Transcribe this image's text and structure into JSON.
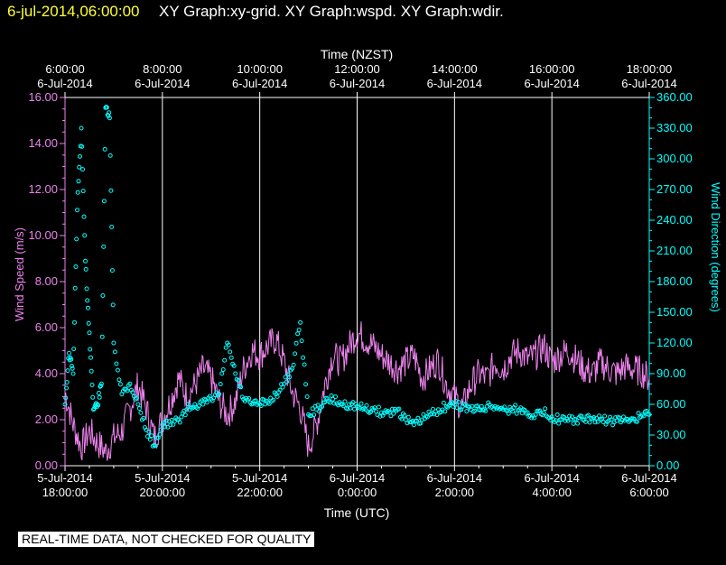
{
  "header": {
    "timestamp": "6-jul-2014,06:00:00",
    "title": "XY Graph:xy-grid.  XY Graph:wspd.  XY Graph:wdir."
  },
  "footer": {
    "qc_note": "REAL-TIME DATA, NOT CHECKED FOR QUALITY"
  },
  "colors": {
    "background": "#000000",
    "axes": "#ffffff",
    "grid": "#ffffff",
    "wind_speed": "#ee82ee",
    "wind_direction": "#00ffff",
    "timestamp": "#ffff33"
  },
  "chart_data": {
    "type": "line",
    "grid": true,
    "x_top": {
      "label": "Time (NZST)",
      "ticks": [
        {
          "time": "6:00:00",
          "date": "6-Jul-2014"
        },
        {
          "time": "8:00:00",
          "date": "6-Jul-2014"
        },
        {
          "time": "10:00:00",
          "date": "6-Jul-2014"
        },
        {
          "time": "12:00:00",
          "date": "6-Jul-2014"
        },
        {
          "time": "14:00:00",
          "date": "6-Jul-2014"
        },
        {
          "time": "16:00:00",
          "date": "6-Jul-2014"
        },
        {
          "time": "18:00:00",
          "date": "6-Jul-2014"
        }
      ]
    },
    "x_bottom": {
      "label": "Time (UTC)",
      "range": [
        "2014-07-05 18:00:00",
        "2014-07-06 06:00:00"
      ],
      "ticks": [
        {
          "date": "5-Jul-2014",
          "time": "18:00:00"
        },
        {
          "date": "5-Jul-2014",
          "time": "20:00:00"
        },
        {
          "date": "5-Jul-2014",
          "time": "22:00:00"
        },
        {
          "date": "6-Jul-2014",
          "time": "0:00:00"
        },
        {
          "date": "6-Jul-2014",
          "time": "2:00:00"
        },
        {
          "date": "6-Jul-2014",
          "time": "4:00:00"
        },
        {
          "date": "6-Jul-2014",
          "time": "6:00:00"
        }
      ]
    },
    "y_left": {
      "label": "Wind Speed (m/s)",
      "range": [
        0,
        16
      ],
      "ticks": [
        "0.00",
        "2.00",
        "4.00",
        "6.00",
        "8.00",
        "10.00",
        "12.00",
        "14.00",
        "16.00"
      ]
    },
    "y_right": {
      "label": "Wind Direction (degrees)",
      "range": [
        0,
        360
      ],
      "ticks": [
        "0.00",
        "30.00",
        "60.00",
        "90.00",
        "120.00",
        "150.00",
        "180.00",
        "210.00",
        "240.00",
        "270.00",
        "300.00",
        "330.00",
        "360.00"
      ]
    },
    "series": [
      {
        "name": "wspd",
        "style": "line",
        "axis": "left",
        "x": [
          "18:00",
          "18:10",
          "18:20",
          "18:30",
          "18:40",
          "18:50",
          "19:00",
          "19:10",
          "19:20",
          "19:30",
          "19:40",
          "19:50",
          "20:00",
          "20:10",
          "20:20",
          "20:30",
          "20:40",
          "20:50",
          "21:00",
          "21:10",
          "21:20",
          "21:30",
          "21:40",
          "21:50",
          "22:00",
          "22:10",
          "22:20",
          "22:30",
          "22:40",
          "22:50",
          "23:00",
          "23:10",
          "23:20",
          "23:30",
          "23:40",
          "23:50",
          "00:00",
          "00:10",
          "00:20",
          "00:30",
          "00:40",
          "00:50",
          "01:00",
          "01:10",
          "01:20",
          "01:30",
          "01:40",
          "01:50",
          "02:00",
          "02:10",
          "02:20",
          "02:30",
          "02:40",
          "02:50",
          "03:00",
          "03:10",
          "03:20",
          "03:30",
          "03:40",
          "03:50",
          "04:00",
          "04:10",
          "04:20",
          "04:30",
          "04:40",
          "04:50",
          "05:00",
          "05:10",
          "05:20",
          "05:30",
          "05:40",
          "05:50",
          "06:00"
        ],
        "y": [
          3.2,
          1.8,
          0.8,
          1.5,
          1.0,
          0.6,
          1.2,
          1.5,
          2.5,
          3.5,
          2.5,
          1.2,
          2.0,
          2.8,
          3.8,
          3.0,
          3.5,
          4.2,
          3.8,
          2.8,
          2.2,
          2.8,
          4.2,
          5.0,
          4.8,
          5.2,
          5.5,
          4.5,
          3.2,
          2.5,
          0.8,
          1.8,
          3.5,
          4.8,
          4.5,
          5.2,
          5.8,
          5.5,
          5.2,
          4.8,
          4.5,
          4.2,
          4.5,
          4.8,
          3.8,
          4.2,
          4.6,
          3.5,
          3.0,
          2.5,
          3.5,
          4.0,
          3.8,
          4.5,
          4.2,
          4.8,
          5.0,
          4.6,
          4.8,
          5.2,
          4.5,
          4.8,
          5.0,
          4.6,
          4.2,
          4.0,
          4.5,
          4.2,
          4.0,
          4.3,
          4.2,
          4.1,
          3.8
        ]
      },
      {
        "name": "wdir",
        "style": "scatter",
        "axis": "right",
        "x": [
          "18:00",
          "18:05",
          "18:10",
          "18:15",
          "18:20",
          "18:25",
          "18:30",
          "18:35",
          "18:40",
          "18:45",
          "18:50",
          "18:55",
          "19:00",
          "19:10",
          "19:20",
          "19:30",
          "19:40",
          "19:50",
          "20:00",
          "20:10",
          "20:20",
          "20:30",
          "20:40",
          "20:50",
          "21:00",
          "21:10",
          "21:20",
          "21:30",
          "21:40",
          "21:50",
          "22:00",
          "22:10",
          "22:20",
          "22:30",
          "22:40",
          "22:50",
          "23:00",
          "23:10",
          "23:20",
          "23:30",
          "23:40",
          "23:50",
          "00:00",
          "00:10",
          "00:20",
          "00:30",
          "00:40",
          "00:50",
          "01:00",
          "01:10",
          "01:20",
          "01:30",
          "01:40",
          "01:50",
          "02:00",
          "02:10",
          "02:20",
          "02:30",
          "02:40",
          "02:50",
          "03:00",
          "03:10",
          "03:20",
          "03:30",
          "03:40",
          "03:50",
          "04:00",
          "04:10",
          "04:20",
          "04:30",
          "04:40",
          "04:50",
          "05:00",
          "05:10",
          "05:20",
          "05:30",
          "05:40",
          "05:50",
          "06:00"
        ],
        "y": [
          60,
          110,
          90,
          250,
          330,
          200,
          130,
          55,
          60,
          80,
          350,
          340,
          120,
          70,
          80,
          60,
          35,
          20,
          40,
          40,
          45,
          55,
          60,
          60,
          65,
          70,
          120,
          90,
          65,
          60,
          60,
          62,
          70,
          80,
          95,
          140,
          50,
          55,
          62,
          65,
          60,
          60,
          58,
          55,
          55,
          52,
          52,
          55,
          45,
          40,
          45,
          50,
          55,
          58,
          60,
          58,
          55,
          55,
          58,
          58,
          55,
          55,
          55,
          52,
          50,
          52,
          48,
          45,
          44,
          45,
          45,
          46,
          45,
          44,
          44,
          44,
          46,
          48,
          50
        ]
      }
    ]
  }
}
